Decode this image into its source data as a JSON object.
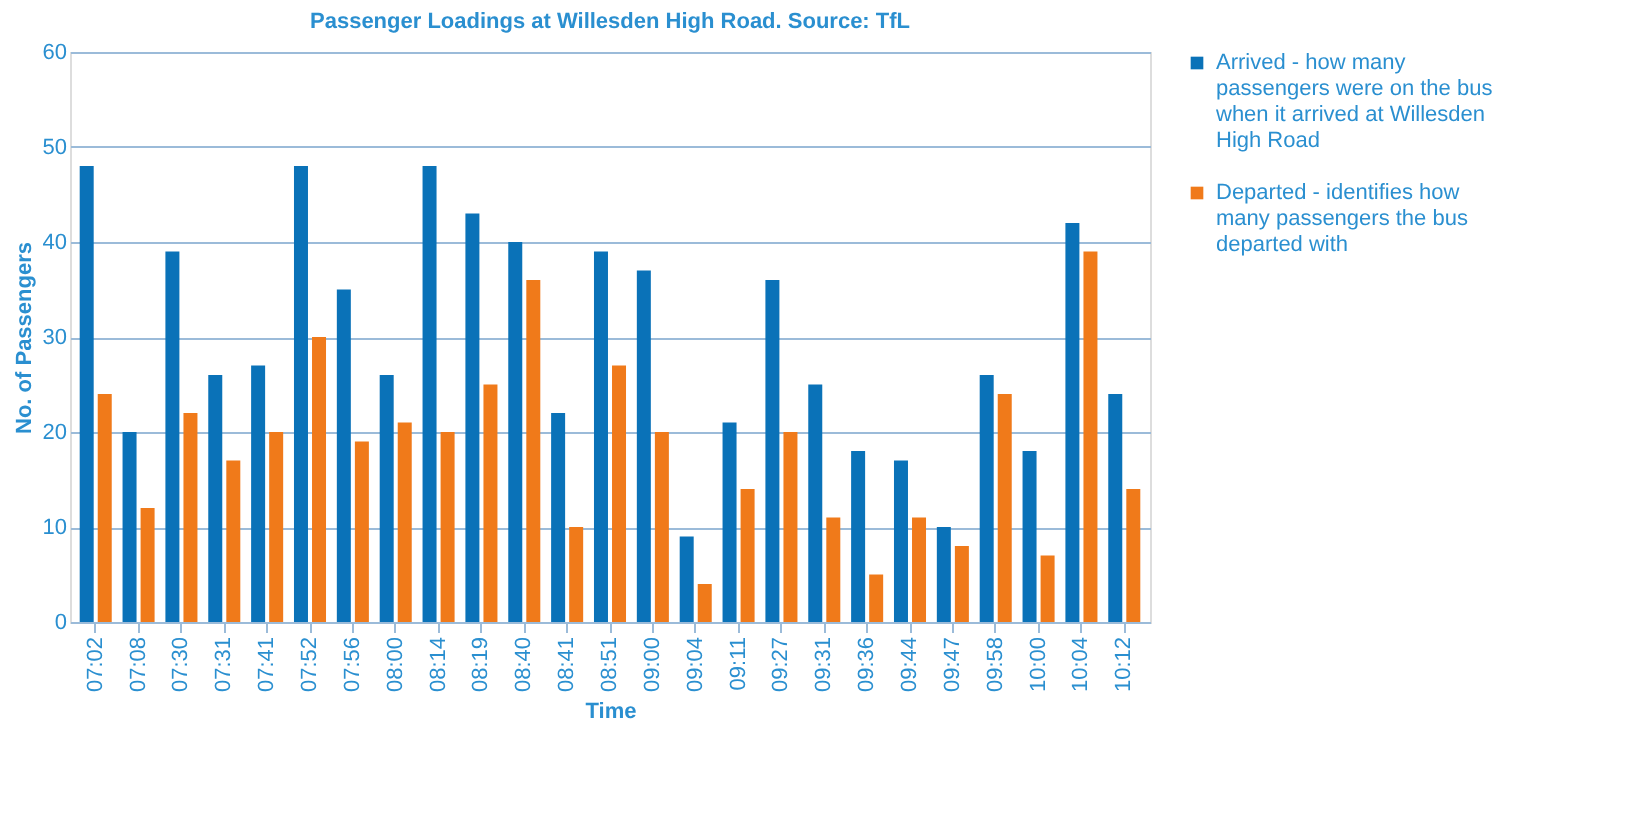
{
  "chart_data": {
    "type": "bar",
    "title": "Passenger Loadings at Willesden High Road. Source: TfL",
    "xlabel": "Time",
    "ylabel": "No. of Passengers",
    "categories": [
      "07:02",
      "07:08",
      "07:30",
      "07:31",
      "07:41",
      "07:52",
      "07:56",
      "08:00",
      "08:14",
      "08:19",
      "08:40",
      "08:41",
      "08:51",
      "09:00",
      "09:04",
      "09:11",
      "09:27",
      "09:31",
      "09:36",
      "09:44",
      "09:47",
      "09:58",
      "10:00",
      "10:04",
      "10:12"
    ],
    "series": [
      {
        "name": "Arrived -  how many passengers were on the bus when it arrived at Willesden High Road",
        "color": "#0a72b8",
        "values": [
          48,
          20,
          39,
          26,
          27,
          48,
          35,
          26,
          48,
          43,
          40,
          22,
          39,
          37,
          9,
          21,
          36,
          25,
          18,
          17,
          10,
          26,
          18,
          42,
          24
        ]
      },
      {
        "name": "Departed  - identifies how many passengers the bus departed with",
        "color": "#f07a1a",
        "values": [
          24,
          12,
          22,
          17,
          20,
          30,
          19,
          21,
          20,
          25,
          36,
          10,
          27,
          20,
          4,
          14,
          20,
          11,
          5,
          11,
          8,
          24,
          7,
          39,
          14
        ]
      }
    ],
    "ylim": [
      0,
      60
    ],
    "yticks": [
      0,
      10,
      20,
      30,
      40,
      50,
      60
    ],
    "grid": "y",
    "legend": "right"
  }
}
